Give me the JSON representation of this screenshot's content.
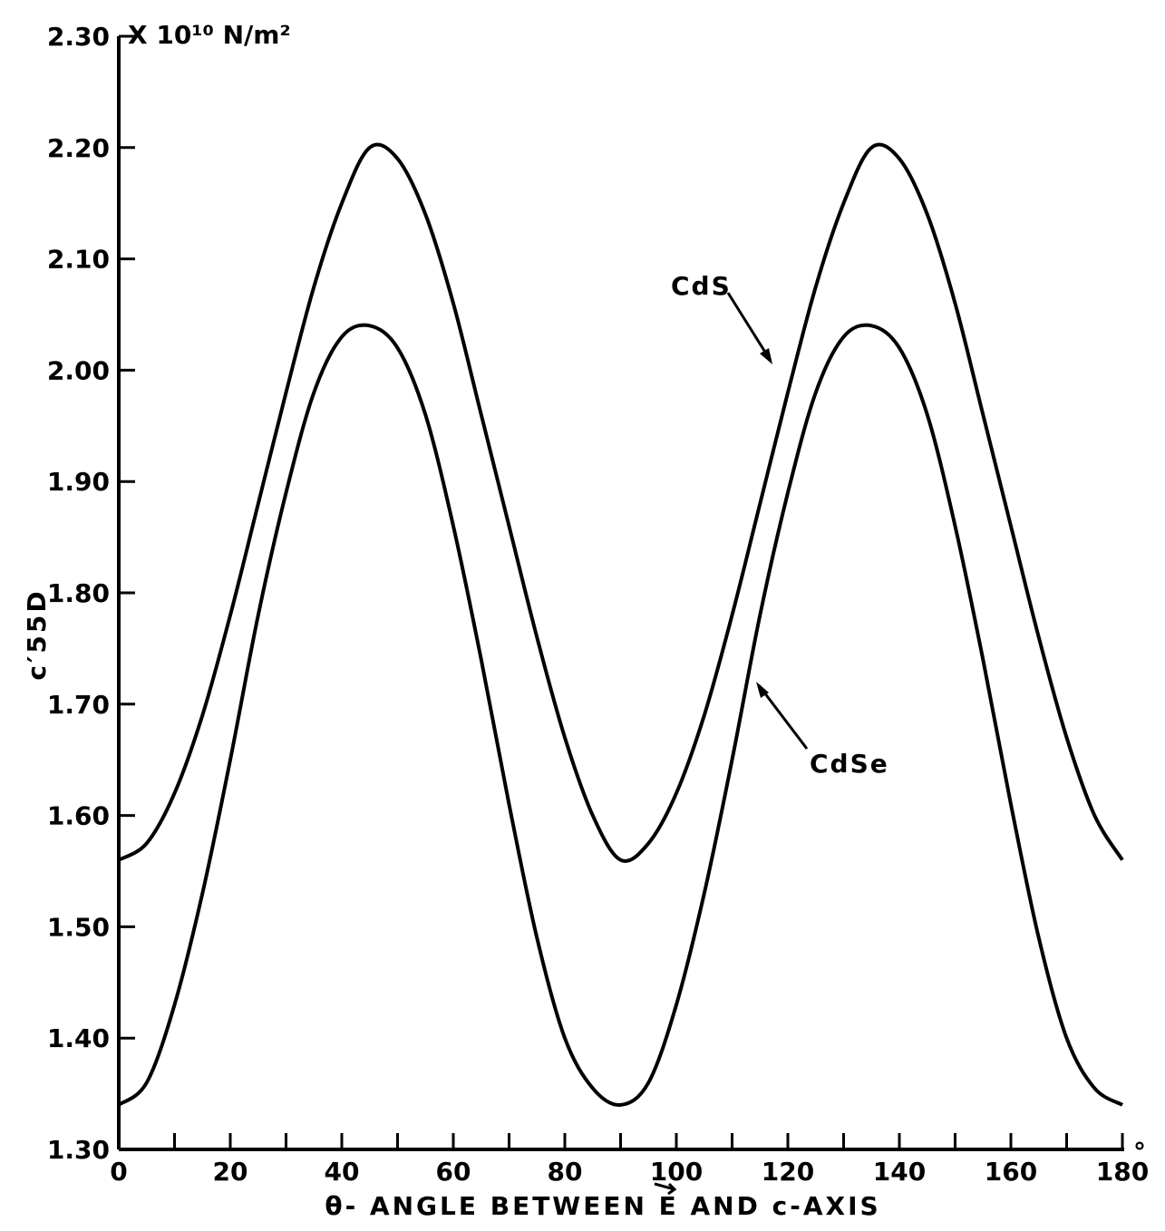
{
  "chart_data": {
    "type": "line",
    "title": "",
    "xlabel": "θ- ANGLE BETWEEN E AND c-AXIS",
    "ylabel": "c′55D",
    "y_units": "X 10¹⁰ N/m²",
    "x_unit_suffix": "°",
    "xlim": [
      0,
      180
    ],
    "ylim": [
      1.3,
      2.3
    ],
    "x_ticks": [
      0,
      20,
      40,
      60,
      80,
      100,
      120,
      140,
      160,
      180
    ],
    "x_tick_labels": [
      "0",
      "20",
      "40",
      "60",
      "80",
      "100",
      "120",
      "140",
      "160",
      "180"
    ],
    "x_minor_step": 10,
    "y_ticks": [
      1.3,
      1.4,
      1.5,
      1.6,
      1.7,
      1.8,
      1.9,
      2.0,
      2.1,
      2.2,
      2.3
    ],
    "y_tick_labels": [
      "1.30",
      "1.40",
      "1.50",
      "1.60",
      "1.70",
      "1.80",
      "1.90",
      "2.00",
      "2.10",
      "2.20",
      "2.30"
    ],
    "grid": false,
    "legend": "none",
    "series": [
      {
        "name": "CdS",
        "label_x_value": 117.5,
        "x": [
          0,
          5,
          10,
          15,
          20,
          25,
          30,
          35,
          40,
          45,
          50,
          55,
          60,
          65,
          70,
          75,
          80,
          85,
          90,
          95,
          100,
          105,
          110,
          115,
          120,
          125,
          130,
          135,
          140,
          145,
          150,
          155,
          160,
          165,
          170,
          175,
          180
        ],
        "values": [
          1.56,
          1.575,
          1.62,
          1.69,
          1.78,
          1.88,
          1.98,
          2.075,
          2.15,
          2.2,
          2.19,
          2.14,
          2.06,
          1.96,
          1.86,
          1.76,
          1.67,
          1.6,
          1.56,
          1.575,
          1.62,
          1.69,
          1.78,
          1.88,
          1.98,
          2.075,
          2.15,
          2.2,
          2.19,
          2.14,
          2.06,
          1.96,
          1.86,
          1.76,
          1.67,
          1.6,
          1.56
        ]
      },
      {
        "name": "CdSe",
        "label_x_value": 113,
        "x": [
          0,
          5,
          10,
          15,
          20,
          25,
          30,
          35,
          40,
          45,
          50,
          55,
          60,
          65,
          70,
          75,
          80,
          85,
          90,
          95,
          100,
          105,
          110,
          115,
          120,
          125,
          130,
          135,
          140,
          145,
          150,
          155,
          160,
          165,
          170,
          175,
          180
        ],
        "values": [
          1.34,
          1.36,
          1.43,
          1.53,
          1.65,
          1.78,
          1.89,
          1.98,
          2.03,
          2.04,
          2.02,
          1.96,
          1.86,
          1.74,
          1.61,
          1.49,
          1.4,
          1.355,
          1.34,
          1.36,
          1.43,
          1.53,
          1.65,
          1.78,
          1.89,
          1.98,
          2.03,
          2.04,
          2.02,
          1.96,
          1.86,
          1.74,
          1.61,
          1.49,
          1.4,
          1.355,
          1.34
        ]
      }
    ]
  }
}
